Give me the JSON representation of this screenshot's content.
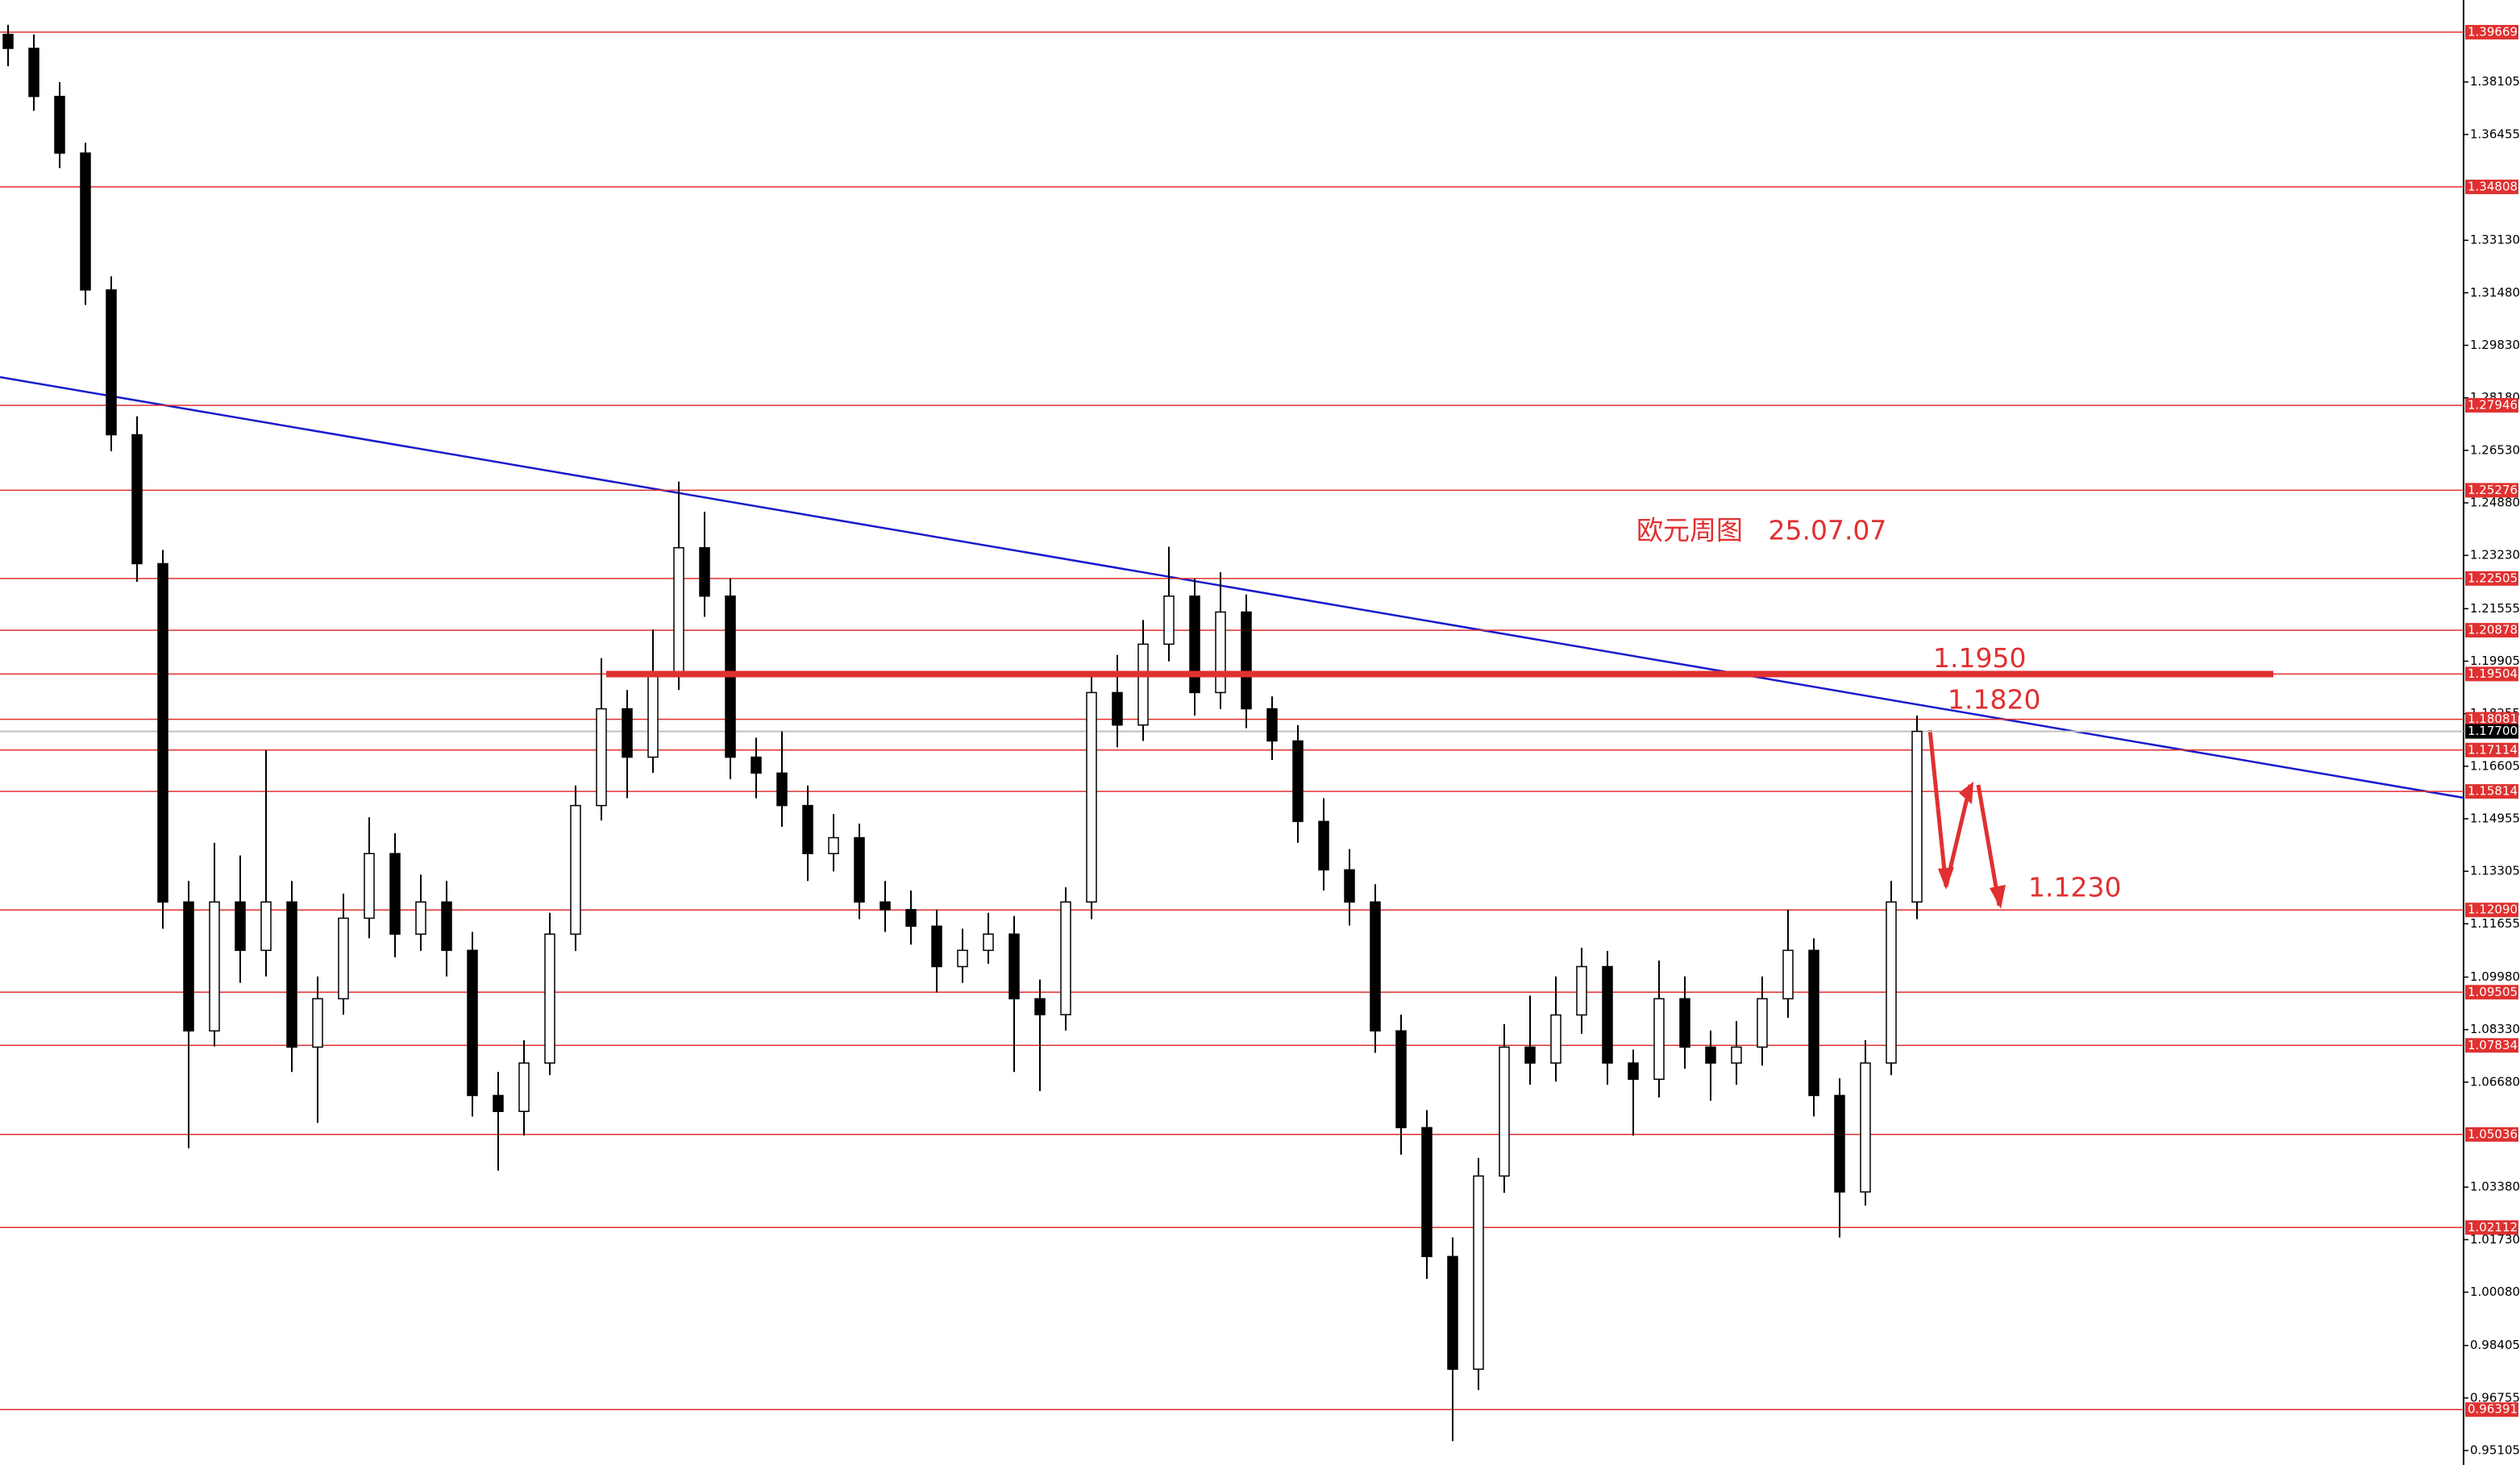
{
  "chart_data": {
    "type": "candlestick",
    "open": [
      1.396,
      1.3916,
      1.3765,
      1.3587,
      1.3157,
      1.2702,
      1.2297,
      1.1234,
      1.0829,
      1.1234,
      1.1082,
      1.1234,
      1.0778,
      1.093,
      1.1183,
      1.1386,
      1.1133,
      1.1234,
      1.1082,
      1.0626,
      1.0576,
      1.0728,
      1.1133,
      1.1537,
      1.1841,
      1.1689,
      1.1942,
      1.2347,
      1.2195,
      1.1689,
      1.1639,
      1.1537,
      1.1386,
      1.1436,
      1.1234,
      1.121,
      1.1158,
      1.1031,
      1.1082,
      1.1133,
      1.093,
      1.088,
      1.1234,
      1.1892,
      1.179,
      1.2044,
      1.2195,
      1.1892,
      1.2145,
      1.1841,
      1.174,
      1.1487,
      1.1335,
      1.1234,
      1.0829,
      1.0525,
      1.012,
      0.9766,
      1.0373,
      1.0778,
      1.0728,
      1.0879,
      1.1031,
      1.0728,
      1.0677,
      1.093,
      1.0778,
      1.0728,
      1.0778,
      1.093,
      1.1082,
      1.0626,
      1.0323,
      1.0728,
      1.1234
    ],
    "high": [
      1.399,
      1.396,
      1.381,
      1.362,
      1.32,
      1.276,
      1.234,
      1.13,
      1.142,
      1.138,
      1.171,
      1.13,
      1.1,
      1.126,
      1.15,
      1.145,
      1.132,
      1.13,
      1.114,
      1.07,
      1.08,
      1.12,
      1.16,
      1.2,
      1.19,
      1.209,
      1.2555,
      1.246,
      1.225,
      1.175,
      1.177,
      1.16,
      1.151,
      1.148,
      1.13,
      1.127,
      1.121,
      1.115,
      1.12,
      1.119,
      1.099,
      1.128,
      1.195,
      1.201,
      1.212,
      1.235,
      1.225,
      1.227,
      1.22,
      1.188,
      1.179,
      1.156,
      1.14,
      1.129,
      1.088,
      1.058,
      1.018,
      1.043,
      1.085,
      1.094,
      1.1,
      1.109,
      1.108,
      1.077,
      1.105,
      1.1,
      1.083,
      1.086,
      1.1,
      1.121,
      1.112,
      1.068,
      1.08,
      1.13,
      1.182
    ],
    "low": [
      1.386,
      1.372,
      1.354,
      1.311,
      1.265,
      1.224,
      1.115,
      1.046,
      1.078,
      1.098,
      1.1,
      1.07,
      1.054,
      1.088,
      1.112,
      1.106,
      1.108,
      1.1,
      1.056,
      1.039,
      1.05,
      1.069,
      1.108,
      1.149,
      1.156,
      1.164,
      1.19,
      1.213,
      1.162,
      1.156,
      1.147,
      1.13,
      1.133,
      1.118,
      1.114,
      1.11,
      1.095,
      1.098,
      1.104,
      1.07,
      1.064,
      1.083,
      1.118,
      1.172,
      1.174,
      1.199,
      1.182,
      1.184,
      1.178,
      1.168,
      1.142,
      1.127,
      1.116,
      1.076,
      1.044,
      1.005,
      0.954,
      0.97,
      1.032,
      1.066,
      1.067,
      1.082,
      1.066,
      1.05,
      1.062,
      1.071,
      1.061,
      1.066,
      1.072,
      1.087,
      1.056,
      1.018,
      1.028,
      1.069,
      1.118
    ],
    "close": [
      1.3916,
      1.3765,
      1.3587,
      1.3157,
      1.2702,
      1.2297,
      1.1234,
      1.0829,
      1.1234,
      1.1082,
      1.1234,
      1.0778,
      1.093,
      1.1183,
      1.1386,
      1.1133,
      1.1234,
      1.1082,
      1.0626,
      1.0576,
      1.0728,
      1.1133,
      1.1537,
      1.1841,
      1.1689,
      1.1942,
      1.2347,
      1.2195,
      1.1689,
      1.1639,
      1.1537,
      1.1386,
      1.1436,
      1.1234,
      1.121,
      1.1158,
      1.1031,
      1.1082,
      1.1133,
      1.093,
      1.088,
      1.1234,
      1.1892,
      1.179,
      1.2044,
      1.2195,
      1.1892,
      1.2145,
      1.1841,
      1.174,
      1.1487,
      1.1335,
      1.1234,
      1.0829,
      1.0525,
      1.012,
      0.9766,
      1.0373,
      1.0778,
      1.0728,
      1.0879,
      1.1031,
      1.0728,
      1.0677,
      1.093,
      1.0778,
      1.0728,
      1.0778,
      1.093,
      1.1082,
      1.0626,
      1.0323,
      1.0728,
      1.1234,
      1.177
    ],
    "up_color": "#ffffff",
    "down_color": "#000000",
    "ylim": [
      0.9465,
      1.4068
    ],
    "yticks": [
      {
        "value": 1.38105,
        "label": "1.38105"
      },
      {
        "value": 1.36455,
        "label": "1.36455"
      },
      {
        "value": 1.3313,
        "label": "1.33130"
      },
      {
        "value": 1.3148,
        "label": "1.31480"
      },
      {
        "value": 1.2983,
        "label": "1.29830"
      },
      {
        "value": 1.2818,
        "label": "1.28180"
      },
      {
        "value": 1.2653,
        "label": "1.26530"
      },
      {
        "value": 1.2488,
        "label": "1.24880"
      },
      {
        "value": 1.2323,
        "label": "1.23230"
      },
      {
        "value": 1.21555,
        "label": "1.21555"
      },
      {
        "value": 1.19905,
        "label": "1.19905"
      },
      {
        "value": 1.18255,
        "label": "1.18255"
      },
      {
        "value": 1.16605,
        "label": "1.16605"
      },
      {
        "value": 1.14955,
        "label": "1.14955"
      },
      {
        "value": 1.13305,
        "label": "1.13305"
      },
      {
        "value": 1.11655,
        "label": "1.11655"
      },
      {
        "value": 1.0998,
        "label": "1.09980"
      },
      {
        "value": 1.0833,
        "label": "1.08330"
      },
      {
        "value": 1.0668,
        "label": "1.06680"
      },
      {
        "value": 1.0338,
        "label": "1.03380"
      },
      {
        "value": 1.0173,
        "label": "1.01730"
      },
      {
        "value": 1.0008,
        "label": "1.00080"
      },
      {
        "value": 0.98405,
        "label": "0.98405"
      },
      {
        "value": 0.96755,
        "label": "0.96755"
      },
      {
        "value": 0.95105,
        "label": "0.95105"
      }
    ],
    "levels": [
      {
        "value": 1.39669,
        "label": "1.39669"
      },
      {
        "value": 1.34808,
        "label": "1.34808"
      },
      {
        "value": 1.27946,
        "label": "1.27946"
      },
      {
        "value": 1.25276,
        "label": "1.25276"
      },
      {
        "value": 1.22505,
        "label": "1.22505"
      },
      {
        "value": 1.20878,
        "label": "1.20878"
      },
      {
        "value": 1.19504,
        "label": "1.19504"
      },
      {
        "value": 1.18081,
        "label": "1.18081"
      },
      {
        "value": 1.17114,
        "label": "1.17114"
      },
      {
        "value": 1.15814,
        "label": "1.15814"
      },
      {
        "value": 1.1209,
        "label": "1.12090"
      },
      {
        "value": 1.09505,
        "label": "1.09505"
      },
      {
        "value": 1.07834,
        "label": "1.07834"
      },
      {
        "value": 1.05036,
        "label": "1.05036"
      },
      {
        "value": 1.02112,
        "label": "1.02112"
      },
      {
        "value": 0.96391,
        "label": "0.96391"
      }
    ],
    "level_color": "#e03030",
    "current_price": {
      "value": 1.177,
      "label": "1.17700"
    },
    "title": "欧元周图   25.07.07",
    "annotations": [
      {
        "value": 1.195,
        "label": "1.1950"
      },
      {
        "value": 1.182,
        "label": "1.1820"
      },
      {
        "value": 1.123,
        "label": "1.1230"
      }
    ]
  }
}
